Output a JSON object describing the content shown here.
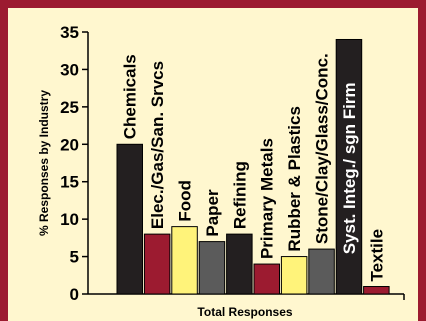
{
  "chart_data": {
    "type": "bar",
    "title": "",
    "xlabel": "Total Responses",
    "ylabel": "% Responses by Industry",
    "ylim": [
      0,
      35
    ],
    "yticks": [
      0,
      5,
      10,
      15,
      20,
      25,
      30,
      35
    ],
    "grid": false,
    "categories": [
      "Chemicals",
      "Elec./Gas/San. Srvcs",
      "Food",
      "Paper",
      "Refining",
      "Primary Metals",
      "Rubber & Plastics",
      "Stone/Clay/Glass/Conc.",
      "Syst. Integ./ sgn Firm",
      "Textile"
    ],
    "values": [
      20,
      8,
      9,
      7,
      8,
      4,
      5,
      6,
      34,
      1
    ],
    "colors": [
      "#231f20",
      "#9c1b30",
      "#fff37a",
      "#5b5b5b",
      "#231f20",
      "#9c1b30",
      "#fff37a",
      "#5b5b5b",
      "#231f20",
      "#9c1b30"
    ]
  },
  "colors": {
    "frame": "#9c1b30",
    "background": "#fff7cf"
  }
}
